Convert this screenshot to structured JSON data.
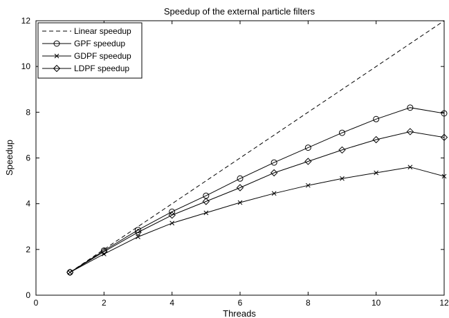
{
  "chart_data": {
    "type": "line",
    "title": "Speedup of the external particle filters",
    "xlabel": "Threads",
    "ylabel": "Speedup",
    "xlim": [
      0,
      12
    ],
    "ylim": [
      0,
      12
    ],
    "xticks": [
      "0",
      "2",
      "4",
      "6",
      "8",
      "10",
      "12"
    ],
    "yticks": [
      "0",
      "2",
      "4",
      "6",
      "8",
      "10",
      "12"
    ],
    "grid": false,
    "legend_position": "top-left",
    "x": [
      1,
      2,
      3,
      4,
      5,
      6,
      7,
      8,
      9,
      10,
      11,
      12
    ],
    "series": [
      {
        "name": "Linear speedup",
        "style": "dashed",
        "marker": "none",
        "values": [
          1,
          2,
          3,
          4,
          5,
          6,
          7,
          8,
          9,
          10,
          11,
          12
        ]
      },
      {
        "name": "GPF speedup",
        "style": "solid",
        "marker": "circle",
        "values": [
          1.0,
          1.95,
          2.85,
          3.65,
          4.35,
          5.1,
          5.8,
          6.45,
          7.1,
          7.7,
          8.2,
          7.95
        ]
      },
      {
        "name": "GDPF speedup",
        "style": "solid",
        "marker": "x",
        "values": [
          1.0,
          1.8,
          2.55,
          3.15,
          3.6,
          4.05,
          4.45,
          4.8,
          5.1,
          5.35,
          5.6,
          5.2
        ]
      },
      {
        "name": "LDPF speedup",
        "style": "solid",
        "marker": "diamond",
        "values": [
          1.0,
          1.9,
          2.75,
          3.5,
          4.1,
          4.7,
          5.35,
          5.85,
          6.35,
          6.8,
          7.15,
          6.9
        ]
      }
    ]
  }
}
